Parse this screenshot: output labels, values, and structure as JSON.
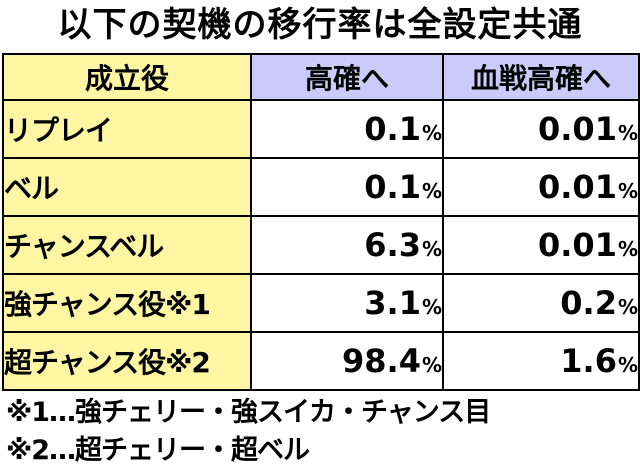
{
  "title": "以下の契機の移行率は全設定共通",
  "table": {
    "headers": {
      "role": "成立役",
      "high_prob": "高確へ",
      "blood_battle_high_prob": "血戦高確へ"
    },
    "unit": "%",
    "rows": [
      {
        "role": "リプレイ",
        "high_prob": "0.1",
        "blood_battle_high_prob": "0.01"
      },
      {
        "role": "ベル",
        "high_prob": "0.1",
        "blood_battle_high_prob": "0.01"
      },
      {
        "role": "チャンスベル",
        "high_prob": "6.3",
        "blood_battle_high_prob": "0.01"
      },
      {
        "role": "強チャンス役※1",
        "high_prob": "3.1",
        "blood_battle_high_prob": "0.2"
      },
      {
        "role": "超チャンス役※2",
        "high_prob": "98.4",
        "blood_battle_high_prob": "1.6"
      }
    ]
  },
  "notes": [
    "※1…強チェリー・強スイカ・チャンス目",
    "※2…超チェリー・超ベル"
  ]
}
